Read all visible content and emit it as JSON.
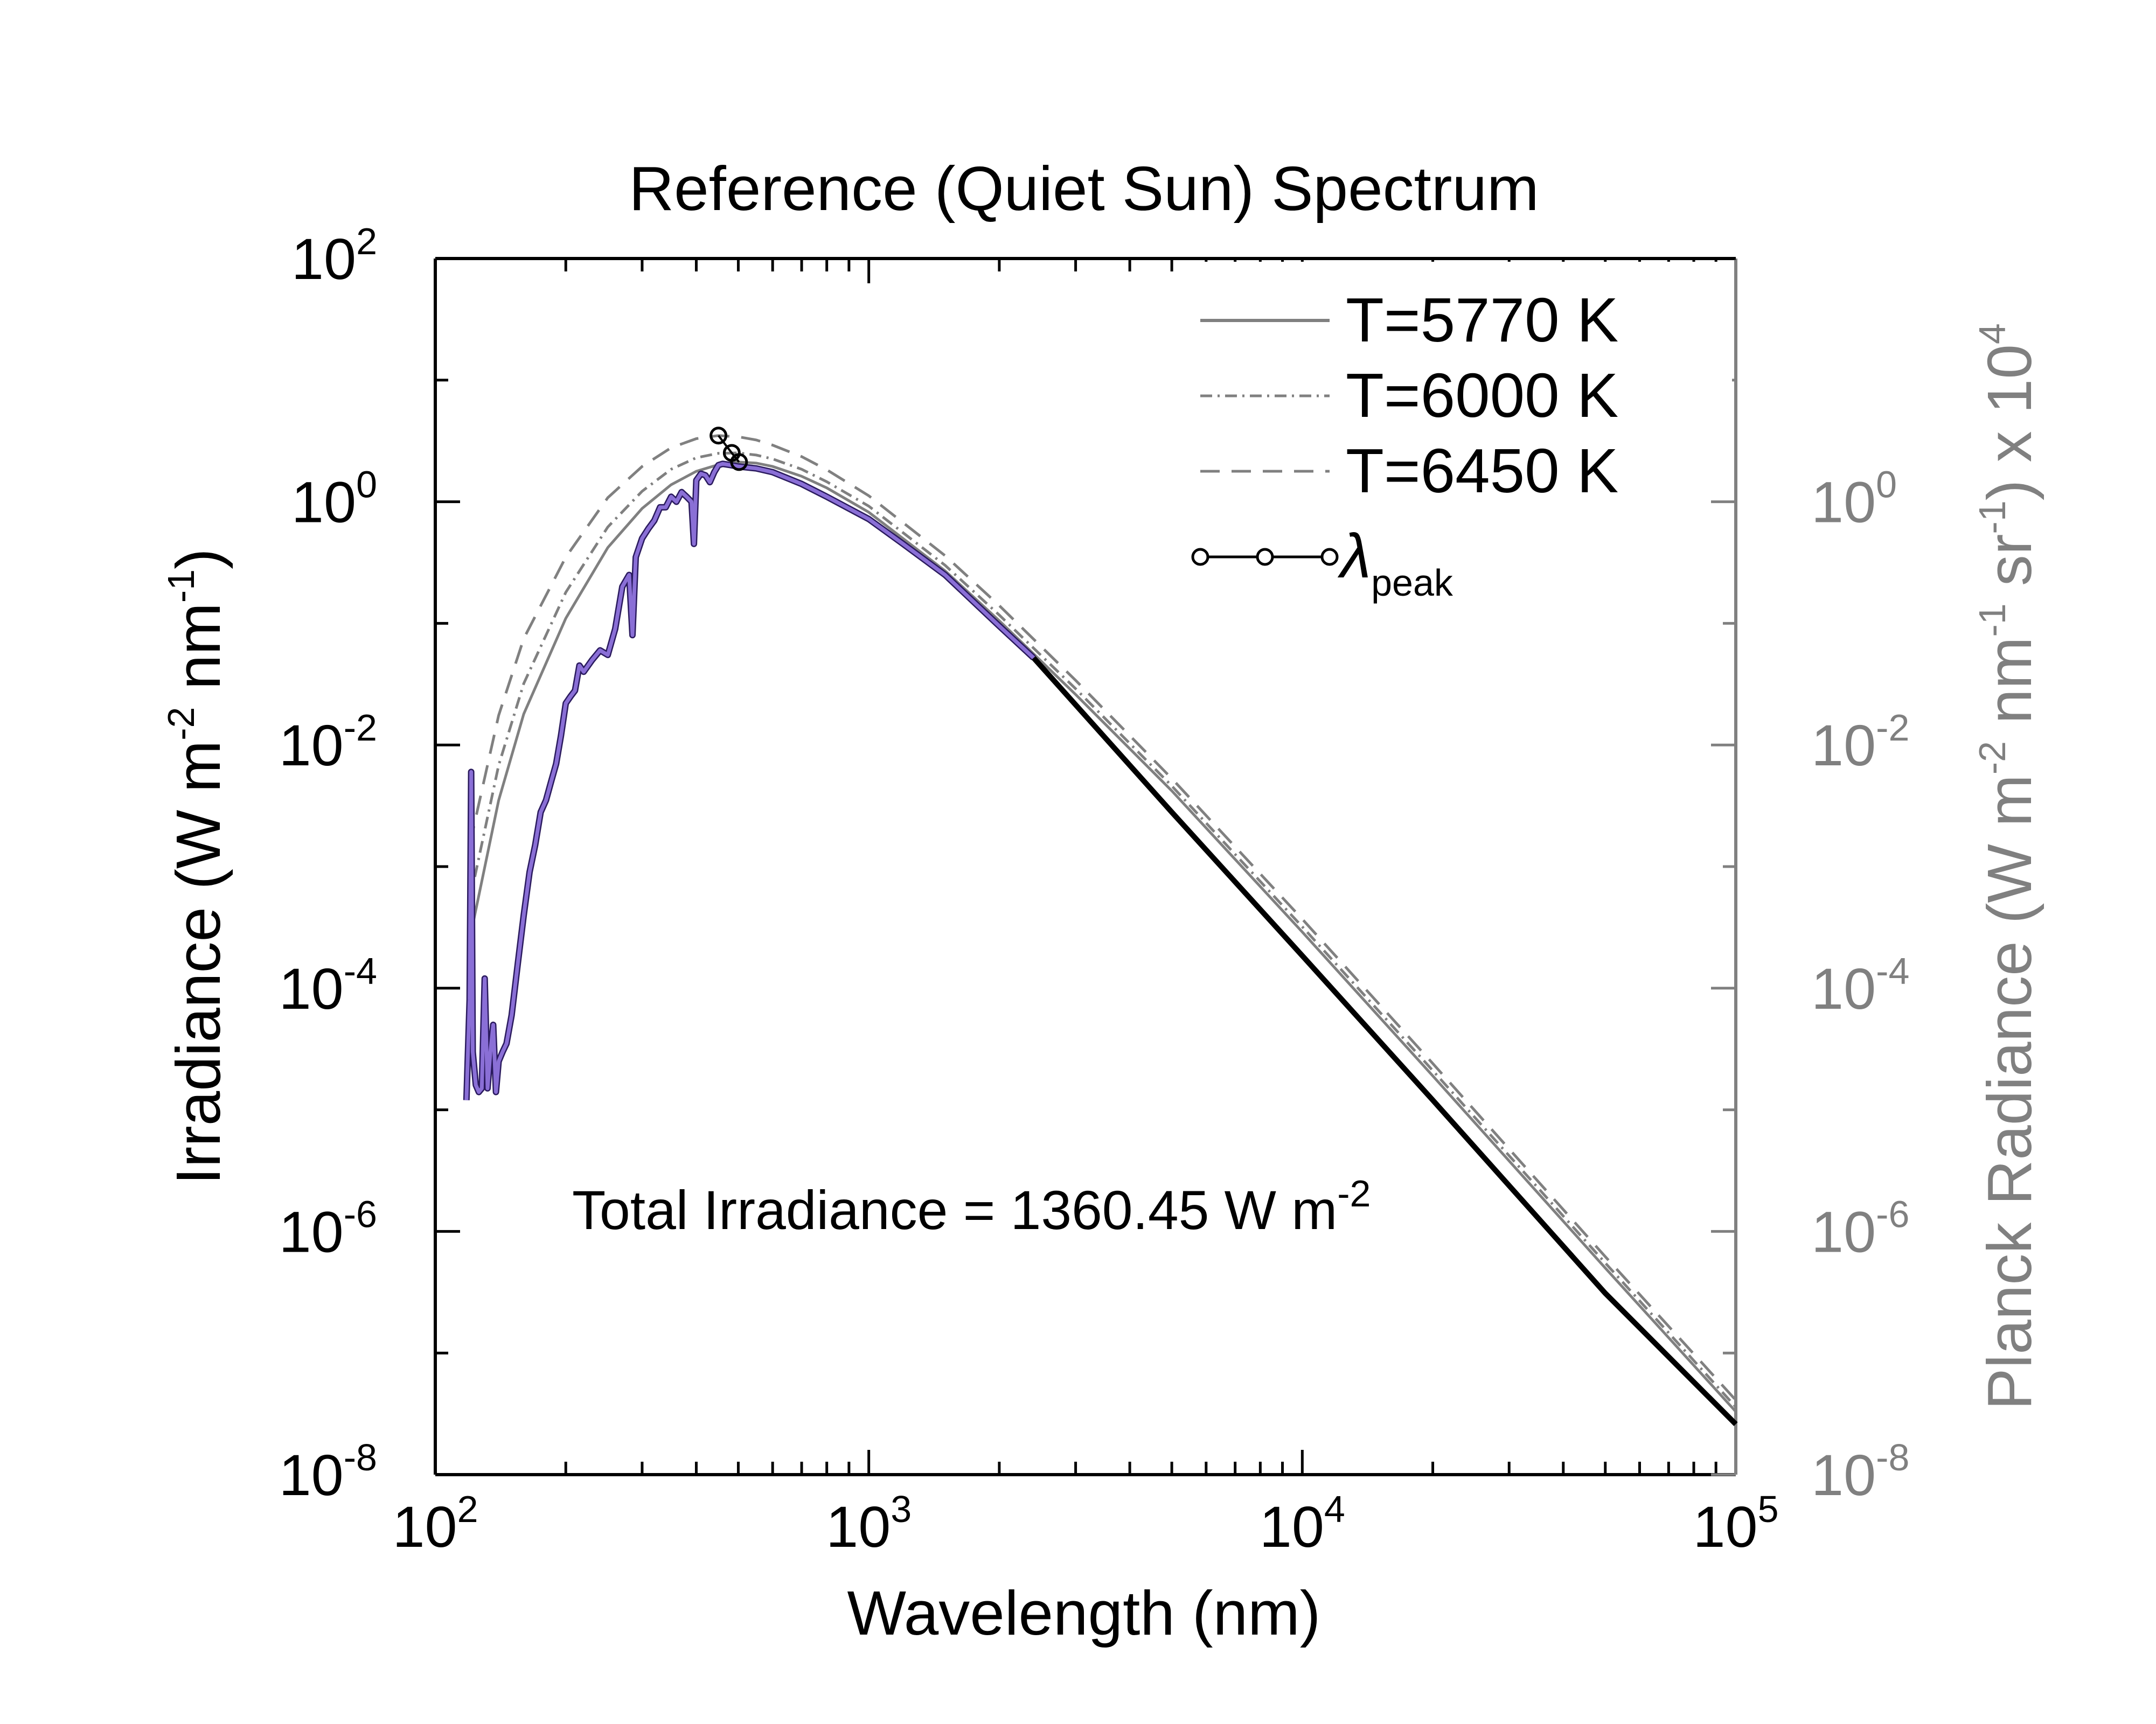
{
  "chart_data": {
    "type": "line",
    "title": "Reference (Quiet Sun) Spectrum",
    "xlabel": "Wavelength (nm)",
    "ylabel": {
      "main": "Irradiance (W m",
      "exp1": "-2",
      "mid": " nm",
      "exp2": "-1",
      "end": ")"
    },
    "y2label": {
      "main": "Planck Radiance (W m",
      "exp1": "-2",
      "mid": " nm",
      "exp2": "-1",
      "mid2": " sr",
      "exp3": "-1",
      "end": ") x 10",
      "exp4": "4"
    },
    "x_scale": "log",
    "y_scale": "log",
    "xlim": [
      100,
      100000
    ],
    "ylim": [
      1e-08,
      100
    ],
    "y2lim": [
      1e-08,
      100
    ],
    "x_ticks": [
      {
        "base": "10",
        "exp": "2",
        "value": 100
      },
      {
        "base": "10",
        "exp": "3",
        "value": 1000
      },
      {
        "base": "10",
        "exp": "4",
        "value": 10000
      },
      {
        "base": "10",
        "exp": "5",
        "value": 100000
      }
    ],
    "y_ticks": [
      {
        "base": "10",
        "exp": "2",
        "value": 100
      },
      {
        "base": "10",
        "exp": "0",
        "value": 1
      },
      {
        "base": "10",
        "exp": "-2",
        "value": 0.01
      },
      {
        "base": "10",
        "exp": "-4",
        "value": 0.0001
      },
      {
        "base": "10",
        "exp": "-6",
        "value": 1e-06
      },
      {
        "base": "10",
        "exp": "-8",
        "value": 1e-08
      }
    ],
    "y2_ticks": [
      {
        "base": "10",
        "exp": "0",
        "value": 1
      },
      {
        "base": "10",
        "exp": "-2",
        "value": 0.01
      },
      {
        "base": "10",
        "exp": "-4",
        "value": 0.0001
      },
      {
        "base": "10",
        "exp": "-6",
        "value": 1e-06
      },
      {
        "base": "10",
        "exp": "-8",
        "value": 1e-08
      }
    ],
    "annotation": {
      "text": "Total Irradiance = 1360.45 W m",
      "exp": "-2"
    },
    "legend": {
      "position": "top-right",
      "entries": [
        {
          "label": "T=5770 K",
          "style": "solid"
        },
        {
          "label": "T=6000 K",
          "style": "dash-dot"
        },
        {
          "label": "T=6450 K",
          "style": "dashed"
        },
        {
          "label": "λ",
          "sub": "peak",
          "style": "line-circles"
        }
      ]
    },
    "colors": {
      "spectrum": "#8a6fd6",
      "spectrum_extended": "#000000",
      "planck": "#808080",
      "right_axis": "#808080",
      "axis": "#000000"
    },
    "series": [
      {
        "name": "T=5770 K",
        "kind": "planck",
        "temperature": 5770,
        "x": [
          120,
          140,
          160,
          200,
          250,
          300,
          350,
          400,
          450,
          500,
          550,
          600,
          700,
          800,
          1000,
          1500,
          2000,
          3000,
          5000,
          10000,
          20000,
          50000,
          100000
        ],
        "y": [
          0.00025,
          0.0035,
          0.018,
          0.11,
          0.42,
          0.88,
          1.38,
          1.78,
          2.02,
          2.12,
          2.08,
          1.95,
          1.62,
          1.3,
          0.82,
          0.27,
          0.105,
          0.026,
          0.0042,
          0.00029,
          1.9e-05,
          5e-07,
          3.3e-08
        ]
      },
      {
        "name": "T=6000 K",
        "kind": "planck",
        "temperature": 6000,
        "x": [
          120,
          140,
          160,
          200,
          250,
          300,
          350,
          400,
          450,
          500,
          550,
          600,
          700,
          800,
          1000,
          1500,
          2000,
          3000,
          5000,
          10000,
          20000,
          50000,
          100000
        ],
        "y": [
          0.00052,
          0.0068,
          0.032,
          0.18,
          0.62,
          1.22,
          1.85,
          2.3,
          2.5,
          2.52,
          2.42,
          2.25,
          1.85,
          1.46,
          0.92,
          0.3,
          0.117,
          0.029,
          0.0046,
          0.00032,
          2.1e-05,
          5.5e-07,
          3.6e-08
        ]
      },
      {
        "name": "T=6450 K",
        "kind": "planck",
        "temperature": 6450,
        "x": [
          120,
          140,
          160,
          200,
          250,
          300,
          350,
          400,
          450,
          500,
          550,
          600,
          700,
          800,
          1000,
          1500,
          2000,
          3000,
          5000,
          10000,
          20000,
          50000,
          100000
        ],
        "y": [
          0.0015,
          0.0175,
          0.075,
          0.35,
          1.08,
          1.95,
          2.78,
          3.3,
          3.5,
          3.42,
          3.22,
          2.92,
          2.35,
          1.83,
          1.12,
          0.36,
          0.14,
          0.034,
          0.0053,
          0.00037,
          2.4e-05,
          6.2e-07,
          4.1e-08
        ]
      },
      {
        "name": "spectrum",
        "kind": "spectrum",
        "x": [
          118,
          120,
          121,
          122,
          124,
          126,
          128,
          130,
          132,
          134,
          136,
          138,
          140,
          143,
          146,
          150,
          155,
          160,
          165,
          170,
          175,
          180,
          185,
          190,
          195,
          200,
          205,
          210,
          215,
          220,
          230,
          240,
          250,
          260,
          270,
          280,
          285,
          290,
          300,
          310,
          320,
          330,
          340,
          350,
          360,
          370,
          380,
          390,
          395,
          400,
          410,
          420,
          430,
          440,
          450,
          460,
          480,
          500,
          550,
          600,
          700,
          800,
          1000,
          1200,
          1500,
          2000,
          2400
        ],
        "y": [
          1.2e-05,
          8e-05,
          0.006,
          3e-05,
          1.6e-05,
          1.4e-05,
          1.5e-05,
          0.00012,
          1.5e-05,
          3e-05,
          5e-05,
          1.4e-05,
          2.5e-05,
          3e-05,
          3.5e-05,
          6e-05,
          0.00016,
          0.0004,
          0.0009,
          0.0015,
          0.0028,
          0.0035,
          0.005,
          0.007,
          0.012,
          0.022,
          0.025,
          0.028,
          0.045,
          0.04,
          0.05,
          0.06,
          0.055,
          0.09,
          0.2,
          0.25,
          0.08,
          0.35,
          0.5,
          0.6,
          0.7,
          0.9,
          0.9,
          1.1,
          1.0,
          1.2,
          1.1,
          1.0,
          0.45,
          1.5,
          1.7,
          1.65,
          1.45,
          1.75,
          2.0,
          2.05,
          2.0,
          1.95,
          1.88,
          1.75,
          1.4,
          1.1,
          0.72,
          0.45,
          0.25,
          0.095,
          0.052
        ]
      },
      {
        "name": "spectrum-extension",
        "kind": "extension",
        "x": [
          2400,
          5000,
          10000,
          20000,
          50000,
          100000
        ],
        "y": [
          0.052,
          0.0028,
          0.000185,
          1.2e-05,
          3.1e-07,
          2.6e-08
        ]
      },
      {
        "name": "λpeak",
        "kind": "peak",
        "x": [
          450,
          483,
          502
        ],
        "y": [
          3.5,
          2.52,
          2.12
        ]
      }
    ]
  }
}
